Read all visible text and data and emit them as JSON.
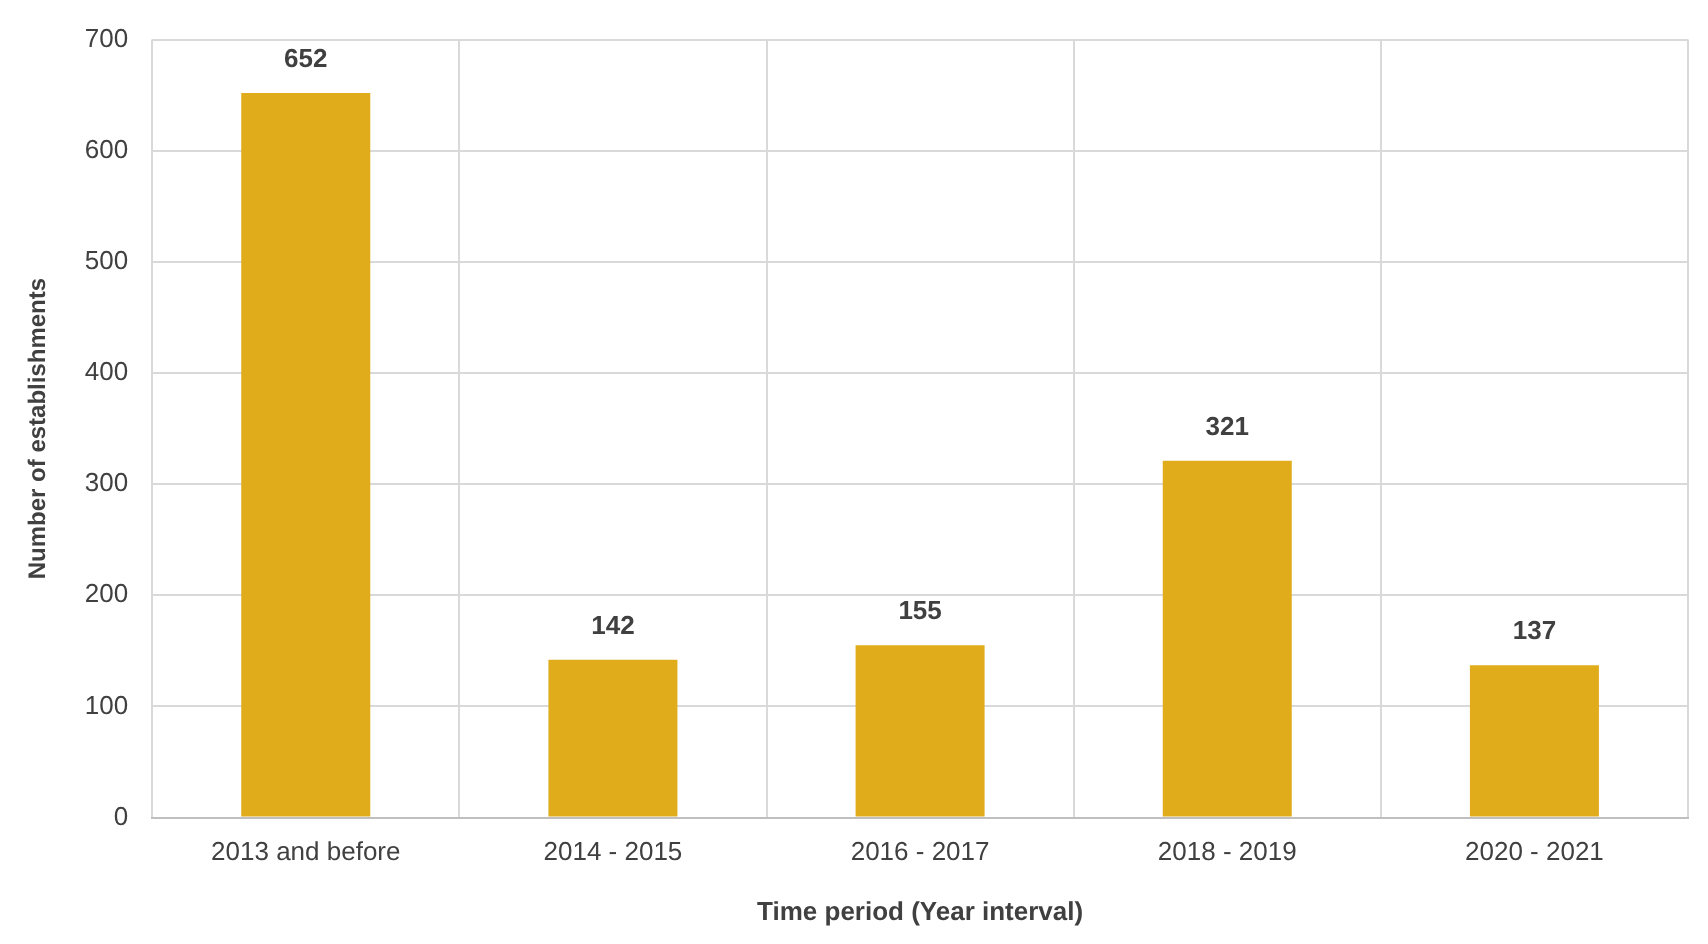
{
  "chart_data": {
    "type": "bar",
    "xlabel": "Time period (Year interval)",
    "ylabel": "Number of establishments",
    "categories": [
      "2013 and before",
      "2014 - 2015",
      "2016 - 2017",
      "2018 - 2019",
      "2020 - 2021"
    ],
    "values": [
      652,
      142,
      155,
      321,
      137
    ],
    "color": "#e0ac1c",
    "ylim": [
      0,
      700
    ],
    "yticks": [
      0,
      100,
      200,
      300,
      400,
      500,
      600,
      700
    ],
    "grid": true,
    "data_labels": true
  }
}
